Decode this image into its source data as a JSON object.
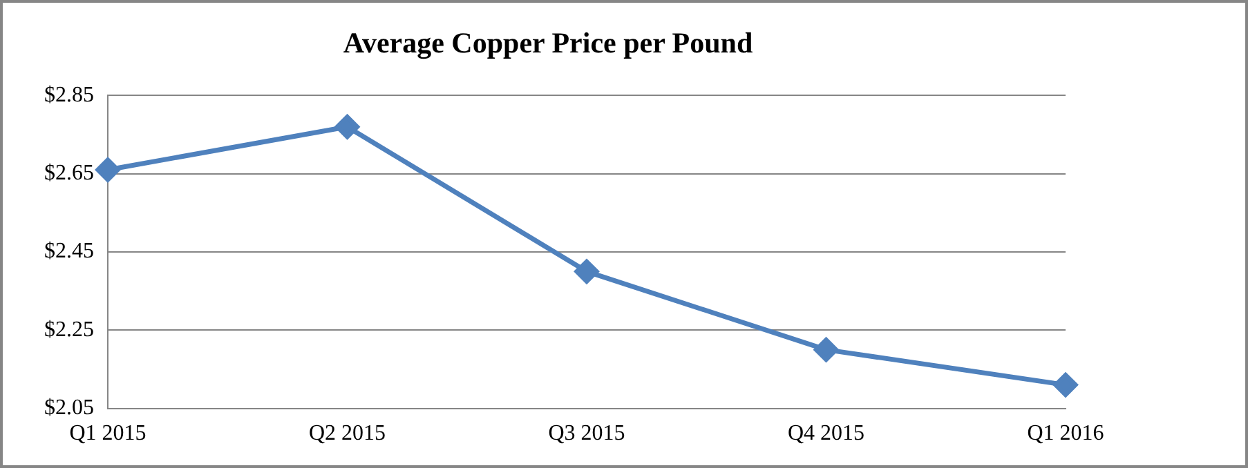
{
  "chart_data": {
    "type": "line",
    "title": "Average Copper Price per Pound",
    "categories": [
      "Q1 2015",
      "Q2 2015",
      "Q3 2015",
      "Q4 2015",
      "Q1 2016"
    ],
    "series": [
      {
        "color": "#4f81bd",
        "values": [
          2.66,
          2.77,
          2.4,
          2.2,
          2.11
        ]
      }
    ],
    "ylim": [
      2.05,
      2.85
    ],
    "yticks": [
      {
        "value": 2.05,
        "label": "$2.05"
      },
      {
        "value": 2.25,
        "label": "$2.25"
      },
      {
        "value": 2.45,
        "label": "$2.45"
      },
      {
        "value": 2.65,
        "label": "$2.65"
      },
      {
        "value": 2.85,
        "label": "$2.85"
      }
    ],
    "grid": "y",
    "marker": "diamond",
    "line_style": "solid"
  }
}
